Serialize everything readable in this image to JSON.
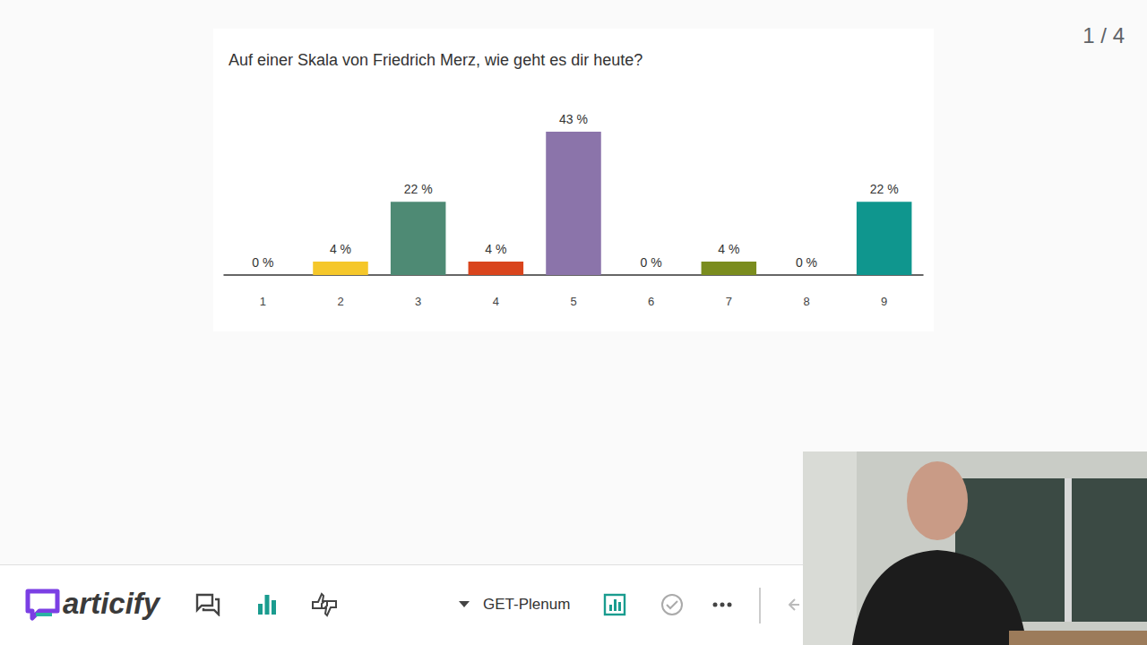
{
  "chart_data": {
    "type": "bar",
    "title": "Auf einer Skala von Friedrich Merz, wie geht es dir heute?",
    "categories": [
      "1",
      "2",
      "3",
      "4",
      "5",
      "6",
      "7",
      "8",
      "9"
    ],
    "values": [
      0,
      4,
      22,
      4,
      43,
      0,
      4,
      0,
      22
    ],
    "value_labels": [
      "0 %",
      "4 %",
      "22 %",
      "4 %",
      "43 %",
      "0 %",
      "4 %",
      "0 %",
      "22 %"
    ],
    "colors": [
      "#5b7fc9",
      "#f5c72a",
      "#4e8a74",
      "#d9441c",
      "#8b74aa",
      "#3f8fc4",
      "#7a8c1e",
      "#c25a8a",
      "#0f968e"
    ],
    "ylim": [
      0,
      43
    ],
    "grid": false,
    "data_labels": true,
    "tick_labels": "x"
  },
  "page": {
    "slide_counter": "1 / 4",
    "logo": "articify",
    "room": "GET-Plenum"
  }
}
